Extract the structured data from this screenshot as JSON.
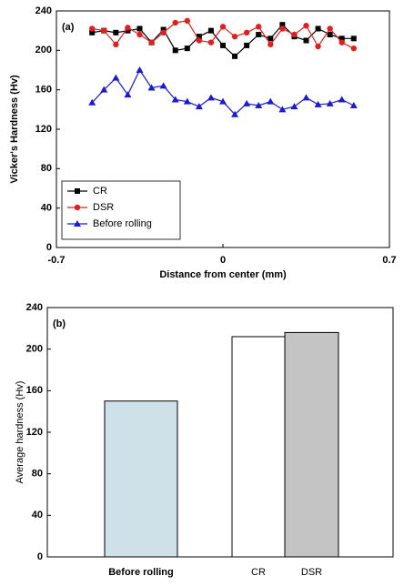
{
  "chart_data": [
    {
      "type": "line",
      "label": "(a)",
      "x_label": "Distance from center (mm)",
      "y_label": "Vicker's Hardness (Hv)",
      "xlim": [
        -0.7,
        0.7
      ],
      "xticks": [
        -0.7,
        0,
        0.7
      ],
      "ylim": [
        0,
        240
      ],
      "yticks": [
        0,
        40,
        80,
        120,
        160,
        200,
        240
      ],
      "legend": "lower left",
      "x": [
        -0.55,
        -0.5,
        -0.45,
        -0.4,
        -0.35,
        -0.3,
        -0.25,
        -0.2,
        -0.15,
        -0.1,
        -0.05,
        0,
        0.05,
        0.1,
        0.15,
        0.2,
        0.25,
        0.3,
        0.35,
        0.4,
        0.45,
        0.5,
        0.55
      ],
      "series": [
        {
          "name": "CR",
          "color": "#000000",
          "marker": "square",
          "values": [
            218,
            220,
            218,
            220,
            222,
            208,
            221,
            200,
            202,
            214,
            220,
            205,
            194,
            205,
            216,
            212,
            226,
            214,
            210,
            222,
            216,
            212,
            212
          ]
        },
        {
          "name": "DSR",
          "color": "#e02020",
          "marker": "circle",
          "values": [
            222,
            220,
            206,
            223,
            216,
            208,
            218,
            228,
            230,
            210,
            208,
            224,
            214,
            218,
            224,
            206,
            222,
            216,
            225,
            204,
            222,
            208,
            202
          ]
        },
        {
          "name": "Before rolling",
          "color": "#1a1ad0",
          "marker": "triangle",
          "values": [
            147,
            160,
            172,
            155,
            180,
            162,
            164,
            150,
            148,
            143,
            152,
            148,
            135,
            146,
            144,
            148,
            140,
            143,
            152,
            145,
            146,
            150,
            144
          ]
        }
      ]
    },
    {
      "type": "bar",
      "label": "(b)",
      "y_label": "Average hardness (Hv)",
      "ylim": [
        0,
        240
      ],
      "yticks": [
        0,
        40,
        80,
        120,
        160,
        200,
        240
      ],
      "categories": [
        "Before rolling",
        "CR",
        "DSR"
      ],
      "values": [
        150,
        212,
        216
      ],
      "colors": [
        "#cfe1e8",
        "#ffffff",
        "#c4c4c4"
      ]
    }
  ]
}
